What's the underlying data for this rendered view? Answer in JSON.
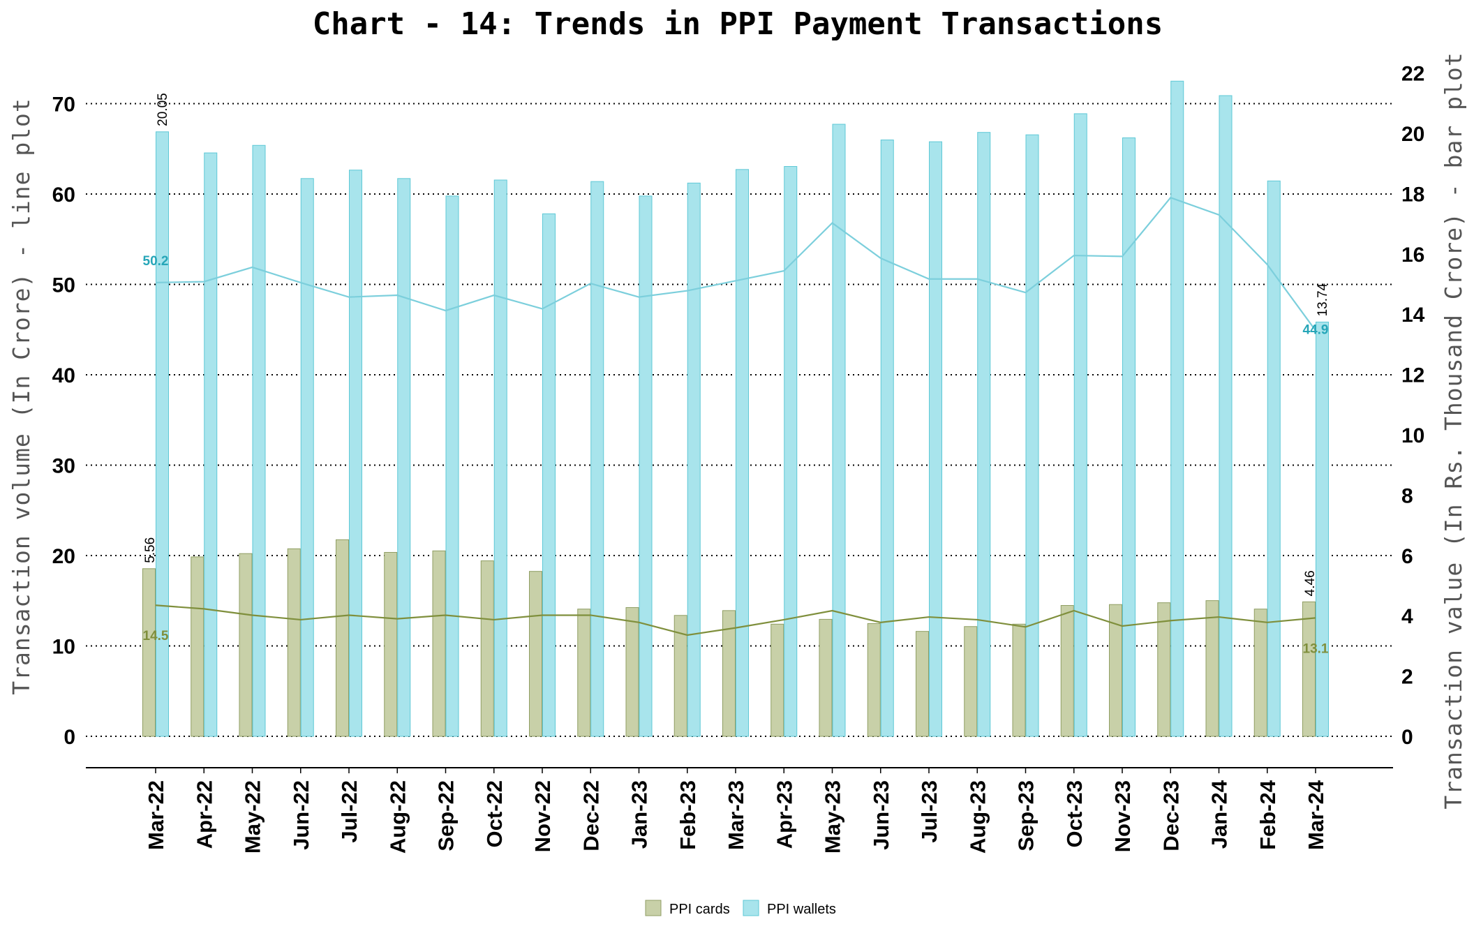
{
  "chart_data": {
    "type": "bar",
    "title": "Chart - 14: Trends in PPI Payment Transactions",
    "y_left_label": "Transaction volume (In Crore) - line plot",
    "y_right_label": "Transaction value (In Rs. Thousand Crore) - bar plot",
    "y_left_range": [
      0,
      70
    ],
    "y_left_ticks": [
      "0",
      "10",
      "20",
      "30",
      "40",
      "50",
      "60",
      "70"
    ],
    "y_right_range": [
      0,
      22
    ],
    "y_right_ticks": [
      "0",
      "2",
      "4",
      "6",
      "8",
      "10",
      "12",
      "14",
      "16",
      "18",
      "20",
      "22"
    ],
    "grid": "horizontal dotted",
    "legend_position": "bottom",
    "categories": [
      "Mar-22",
      "Apr-22",
      "May-22",
      "Jun-22",
      "Jul-22",
      "Aug-22",
      "Sep-22",
      "Oct-22",
      "Nov-22",
      "Dec-22",
      "Jan-23",
      "Feb-23",
      "Mar-23",
      "Apr-23",
      "May-23",
      "Jun-23",
      "Jul-23",
      "Aug-23",
      "Sep-23",
      "Oct-23",
      "Nov-23",
      "Dec-23",
      "Jan-24",
      "Feb-24",
      "Mar-24"
    ],
    "bar_series": [
      {
        "name": "PPI cards",
        "color": "#c8d0a8",
        "stroke": "#8f9e63",
        "values": [
          5.56,
          5.95,
          6.06,
          6.22,
          6.52,
          6.1,
          6.15,
          5.82,
          5.47,
          4.22,
          4.27,
          4.01,
          4.17,
          3.72,
          3.88,
          3.74,
          3.48,
          3.64,
          3.72,
          4.34,
          4.37,
          4.43,
          4.5,
          4.22,
          4.46
        ],
        "end_labels": [
          "5.56",
          "4.46"
        ]
      },
      {
        "name": "PPI wallets",
        "color": "#a8e4ec",
        "stroke": "#5ec8d6",
        "values": [
          20.05,
          19.35,
          19.6,
          18.5,
          18.78,
          18.5,
          17.92,
          18.45,
          17.33,
          18.4,
          17.92,
          18.35,
          18.8,
          18.9,
          20.3,
          19.78,
          19.72,
          20.03,
          19.95,
          20.65,
          19.85,
          21.73,
          21.25,
          18.42,
          13.74
        ],
        "end_labels": [
          "20.05",
          "13.74"
        ]
      }
    ],
    "line_series": [
      {
        "name": "PPI cards",
        "color": "#7f8f3c",
        "values": [
          14.5,
          14.1,
          13.4,
          12.9,
          13.4,
          13.0,
          13.4,
          12.9,
          13.4,
          13.4,
          12.6,
          11.2,
          12.0,
          12.9,
          13.9,
          12.6,
          13.2,
          12.9,
          12.1,
          13.9,
          12.2,
          12.8,
          13.2,
          12.6,
          13.1
        ],
        "end_labels": [
          "14.5",
          "13.1"
        ]
      },
      {
        "name": "PPI wallets",
        "color": "#7ccfdc",
        "values": [
          50.2,
          50.3,
          51.9,
          50.2,
          48.6,
          48.8,
          47.1,
          48.8,
          47.3,
          50.1,
          48.6,
          49.3,
          50.4,
          51.5,
          56.8,
          52.9,
          50.6,
          50.6,
          49.1,
          53.2,
          53.1,
          59.6,
          57.7,
          52.2,
          44.9
        ],
        "end_labels": [
          "50.2",
          "44.9"
        ],
        "end_label_color": "#26a6b8"
      }
    ]
  }
}
